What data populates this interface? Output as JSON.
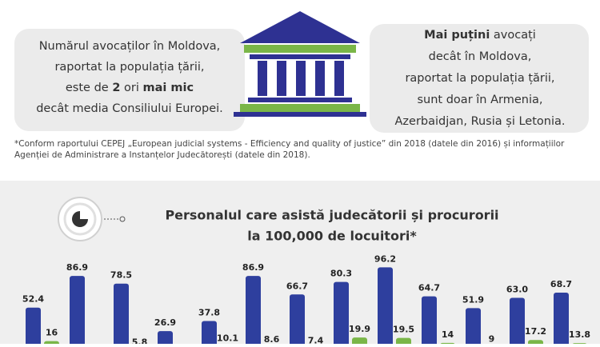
{
  "left_box": {
    "lines": [
      [
        "Numărul avocaților în Moldova,"
      ],
      [
        "raportat la populația țării,"
      ],
      [
        "este de ",
        "2",
        " ori ",
        "mai mic"
      ],
      [
        "decât media Consiliului Europei."
      ]
    ]
  },
  "right_box": {
    "lines": [
      [
        "Mai puțini",
        " avocați"
      ],
      [
        "decât în Moldova,"
      ],
      [
        "raportat la populația țării,"
      ],
      [
        "sunt doar în Armenia,"
      ],
      [
        "Azerbaidjan, Rusia și Letonia."
      ]
    ]
  },
  "footnote": [
    "*Conform raportului CEPEJ „European judicial systems - Efficiency and quality of justice” din 2018 (datele din 2016) și informațiilor",
    "Agenției de Administrare a Instanțelor Judecătorești (datele din 2018)."
  ],
  "chart_data": {
    "type": "bar",
    "title": [
      "Personalul care asistă judecătorii și procurorii",
      "la 100,000 de locuitori*"
    ],
    "categories": [
      null,
      null,
      null,
      null,
      null,
      null,
      null,
      null,
      null,
      null,
      null,
      null,
      null
    ],
    "series": [
      {
        "color": "#2e3f9e",
        "values": [
          52.4,
          86.9,
          78.5,
          26.9,
          37.8,
          86.9,
          66.7,
          80.3,
          96.2,
          64.7,
          51.9,
          63.0,
          68.7
        ],
        "value_labels": [
          "52.4",
          "86.9",
          "78.5",
          "26.9",
          "37.8",
          "86.9",
          "66.7",
          "80.3",
          "96.2",
          "64.7",
          "51.9",
          "63.0",
          "68.7"
        ]
      },
      {
        "color": "#7ab648",
        "values": [
          16,
          null,
          5.8,
          null,
          10.1,
          8.6,
          7.4,
          19.9,
          19.5,
          14,
          9,
          17.2,
          13.8
        ]
      }
    ]
  }
}
